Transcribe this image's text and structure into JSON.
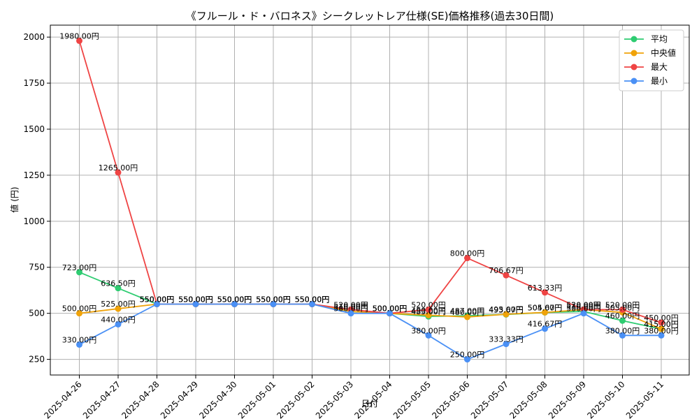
{
  "chart_data": {
    "type": "line",
    "title": "《フルール・ド・バロネス》シークレットレア仕様(SE)価格推移(過去30日間)",
    "xlabel": "日付",
    "ylabel": "値 (円)",
    "x": [
      "2025-04-26",
      "2025-04-27",
      "2025-04-28",
      "2025-04-29",
      "2025-04-30",
      "2025-05-01",
      "2025-05-02",
      "2025-05-03",
      "2025-05-04",
      "2025-05-05",
      "2025-05-06",
      "2025-05-07",
      "2025-05-08",
      "2025-05-09",
      "2025-05-10",
      "2025-05-11"
    ],
    "yticks": [
      250,
      500,
      750,
      1000,
      1250,
      1500,
      1750,
      2000
    ],
    "ylim": [
      165,
      2065
    ],
    "grid": true,
    "legend_position": "top-right",
    "label_suffix": "円",
    "series": [
      {
        "name": "平均",
        "color": "#2ecc71",
        "values": [
          723.0,
          636.5,
          550.0,
          550.0,
          550.0,
          550.0,
          550.0,
          510.0,
          500.0,
          483.0,
          487.0,
          493.67,
          504.67,
          510.0,
          460.0,
          415.0
        ],
        "labels": [
          "723.00円",
          "636.50円",
          "550.00円",
          "550.00円",
          "550.00円",
          "550.00円",
          "550.00円",
          "510.00円",
          "500.00円",
          "483.00円",
          "487.00円",
          "493.67円",
          "504.67円",
          "510.00円",
          "460.00円",
          "415.00円"
        ]
      },
      {
        "name": "中央値",
        "color": "#f0a30a",
        "values": [
          500.0,
          525.0,
          550.0,
          550.0,
          550.0,
          550.0,
          550.0,
          510.0,
          500.0,
          490.0,
          480.0,
          495.0,
          505.0,
          520.0,
          505.0,
          415.0
        ],
        "labels": [
          "500.00円",
          "525.00円",
          "550.00円",
          "550.00円",
          "550.00円",
          "550.00円",
          "550.00円",
          "510.00円",
          "500.00円",
          "490.00円",
          "480.00円",
          "495.00円",
          "505.00円",
          "520.00円",
          "505.00円",
          "415.00円"
        ]
      },
      {
        "name": "最大",
        "color": "#ef4444",
        "values": [
          1980.0,
          1265.0,
          550.0,
          550.0,
          550.0,
          550.0,
          550.0,
          520.0,
          500.0,
          520.0,
          800.0,
          706.67,
          613.33,
          520.0,
          520.0,
          450.0
        ],
        "labels": [
          "1980.00円",
          "1265.00円",
          "550.00円",
          "550.00円",
          "550.00円",
          "550.00円",
          "550.00円",
          "520.00円",
          "500.00円",
          "520.00円",
          "800.00円",
          "706.67円",
          "613.33円",
          "520.00円",
          "520.00円",
          "450.00円"
        ]
      },
      {
        "name": "最小",
        "color": "#4a90f5",
        "values": [
          330.0,
          440.0,
          550.0,
          550.0,
          550.0,
          550.0,
          550.0,
          500.0,
          500.0,
          380.0,
          250.0,
          333.33,
          416.67,
          500.0,
          380.0,
          380.0
        ],
        "labels": [
          "330.00円",
          "440.00円",
          "550.00円",
          "550.00円",
          "550.00円",
          "550.00円",
          "550.00円",
          "500.00円",
          "500.00円",
          "380.00円",
          "250.00円",
          "333.33円",
          "416.67円",
          "500.00円",
          "380.00円",
          "380.00円"
        ]
      }
    ]
  }
}
